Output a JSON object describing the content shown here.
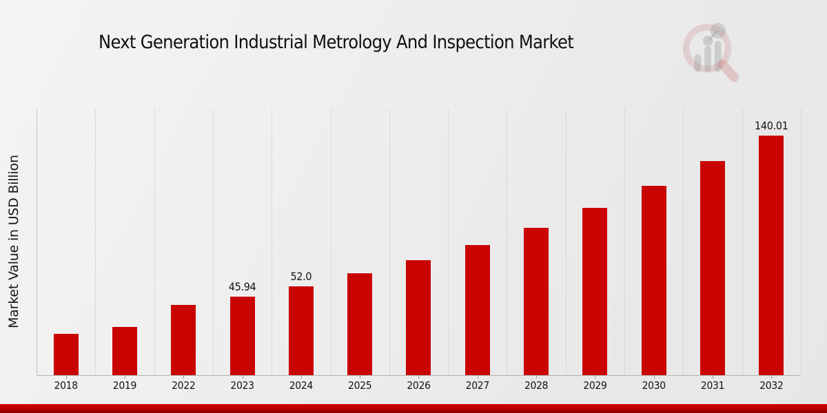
{
  "title": "Next Generation Industrial Metrology And Inspection Market",
  "ylabel": "Market Value in USD Billion",
  "colors": {
    "bar": "#c90202",
    "gridline": "#c6c6c6",
    "axis": "#b3b3b3",
    "bottom_band_top": "#d40808",
    "bottom_band_bottom": "#8e0000",
    "background": "#ededed",
    "text": "#141414"
  },
  "chart_data": {
    "type": "bar",
    "title": "Next Generation Industrial Metrology And Inspection Market",
    "ylabel": "Market Value in USD Billion",
    "xlabel": "",
    "categories": [
      "2018",
      "2019",
      "2022",
      "2023",
      "2024",
      "2025",
      "2026",
      "2027",
      "2028",
      "2029",
      "2030",
      "2031",
      "2032"
    ],
    "values": [
      24.0,
      28.1,
      41.1,
      45.94,
      52.0,
      59.4,
      67.2,
      75.9,
      86.2,
      97.6,
      110.4,
      125.0,
      140.01
    ],
    "data_labels": {
      "2023": "45.94",
      "2024": "52.0",
      "2032": "140.01"
    },
    "ylim": [
      0,
      155.6
    ],
    "grid": "vertical-dotted",
    "legend": "none",
    "bar_color": "#c90202",
    "units": "USD Billion"
  },
  "logo": {
    "name": "magnifier-bar-chart-watermark"
  }
}
